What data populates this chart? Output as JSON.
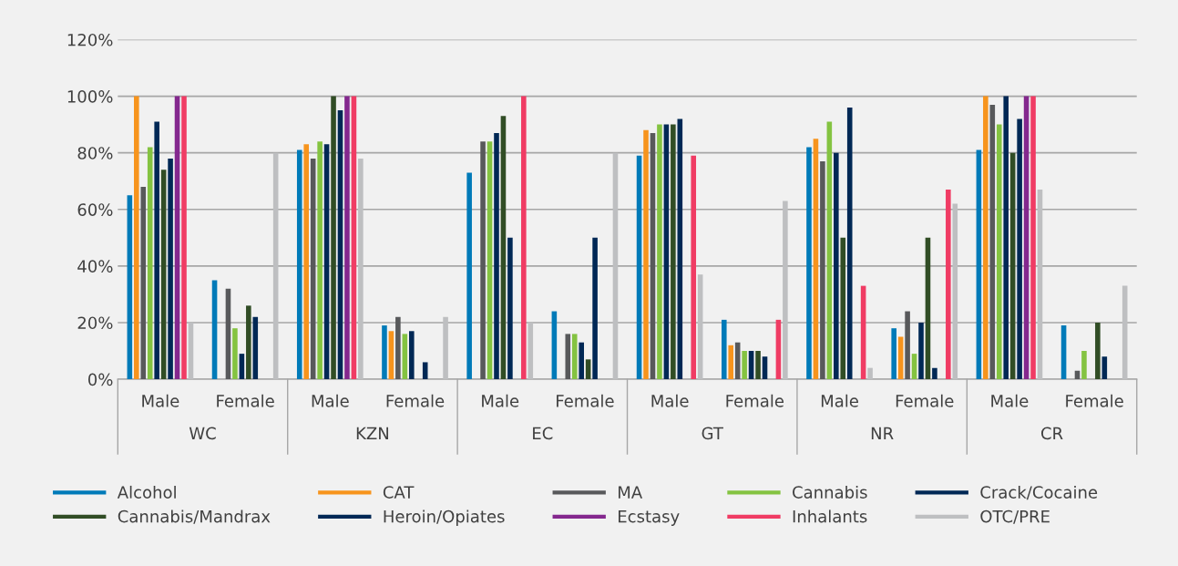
{
  "chart_data": {
    "type": "bar",
    "categories": [
      "Male",
      "Female",
      "Male",
      "Female",
      "Male",
      "Female",
      "Male",
      "Female",
      "Male",
      "Female",
      "Male",
      "Female"
    ],
    "annotations": [
      "WC",
      "KZN",
      "EC",
      "GT",
      "NR",
      "CR"
    ],
    "ylim": [
      0,
      120
    ],
    "yticks": [
      {
        "value": 0,
        "label": "0%"
      },
      {
        "value": 20,
        "label": "20%"
      },
      {
        "value": 40,
        "label": "40%"
      },
      {
        "value": 60,
        "label": "60%"
      },
      {
        "value": 80,
        "label": "80%"
      },
      {
        "value": 100,
        "label": "100%"
      },
      {
        "value": 120,
        "label": "120%"
      }
    ],
    "grid": "y",
    "legend": "bottom",
    "series": [
      {
        "name": "Alcohol",
        "color": "#007ab8",
        "values": [
          65,
          35,
          81,
          19,
          73,
          24,
          79,
          21,
          82,
          18,
          81,
          19
        ]
      },
      {
        "name": "CAT",
        "color": "#f7941d",
        "values": [
          100,
          null,
          83,
          17,
          null,
          null,
          88,
          12,
          85,
          15,
          100,
          null
        ]
      },
      {
        "name": "MA",
        "color": "#58595b",
        "values": [
          68,
          32,
          78,
          22,
          84,
          16,
          87,
          13,
          77,
          24,
          97,
          3
        ]
      },
      {
        "name": "Cannabis",
        "color": "#84c341",
        "values": [
          82,
          18,
          84,
          16,
          84,
          16,
          90,
          10,
          91,
          9,
          90,
          10
        ]
      },
      {
        "name": "Crack/Cocaine",
        "color": "#002855",
        "values": [
          91,
          9,
          83,
          17,
          87,
          13,
          90,
          10,
          80,
          20,
          100,
          null
        ]
      },
      {
        "name": "Cannabis/Mandrax",
        "color": "#314d25",
        "values": [
          74,
          26,
          100,
          null,
          93,
          7,
          90,
          10,
          50,
          50,
          80,
          20
        ]
      },
      {
        "name": "Heroin/Opiates",
        "color": "#002855",
        "values": [
          78,
          22,
          95,
          6,
          50,
          50,
          92,
          8,
          96,
          4,
          92,
          8
        ]
      },
      {
        "name": "Ecstasy",
        "color": "#84288e",
        "values": [
          100,
          null,
          100,
          null,
          null,
          null,
          null,
          null,
          null,
          null,
          100,
          null
        ]
      },
      {
        "name": "Inhalants",
        "color": "#f03c64",
        "values": [
          100,
          null,
          100,
          null,
          100,
          null,
          79,
          21,
          33,
          67,
          100,
          null
        ]
      },
      {
        "name": "OTC/PRE",
        "color": "#bebfc1",
        "values": [
          20,
          80,
          78,
          22,
          20,
          80,
          37,
          63,
          4,
          62,
          67,
          33
        ]
      }
    ]
  }
}
